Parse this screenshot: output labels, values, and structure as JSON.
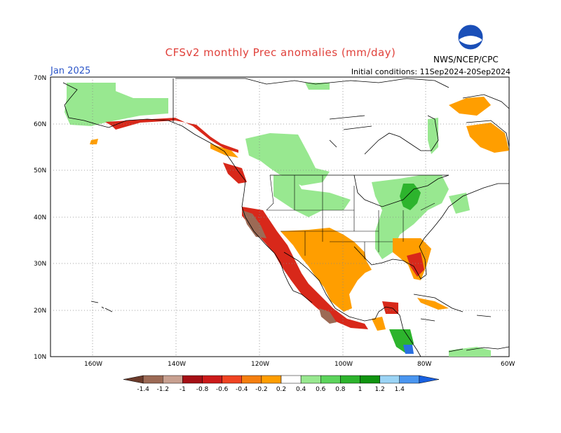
{
  "header": {
    "title": "CFSv2 monthly Prec anomalies (mm/day)",
    "month": "Jan 2025",
    "initial_conditions": "Initial conditions: 11Sep2024-20Sep2024",
    "agency": "NWS/NCEP/CPC",
    "logo_text": "NOAA"
  },
  "map": {
    "lat_labels": [
      "70N",
      "60N",
      "50N",
      "40N",
      "30N",
      "20N",
      "10N"
    ],
    "lon_labels": [
      "160W",
      "140W",
      "120W",
      "100W",
      "80W",
      "60W"
    ]
  },
  "colorbar": {
    "labels": [
      "-1.4",
      "-1.2",
      "-1",
      "-0.8",
      "-0.6",
      "-0.4",
      "-0.2",
      "0.2",
      "0.4",
      "0.6",
      "0.8",
      "1",
      "1.2",
      "1.4"
    ],
    "colors": [
      "#6b3b2b",
      "#9c6a55",
      "#c8a090",
      "#a50f15",
      "#cc1a1a",
      "#f04422",
      "#f57f0f",
      "#ff9e00",
      "#ffffff",
      "#98e890",
      "#5cd45c",
      "#2db42d",
      "#109410",
      "#9bd4f5",
      "#4a96f0",
      "#1860e0"
    ]
  },
  "colors": {
    "wet_light": "#98e890",
    "dry_orange": "#ff9e00",
    "dry_red": "#d8281a",
    "dry_darkred": "#a50f15",
    "dry_brown": "#9c6a55",
    "wet_blue": "#2a70e0"
  }
}
